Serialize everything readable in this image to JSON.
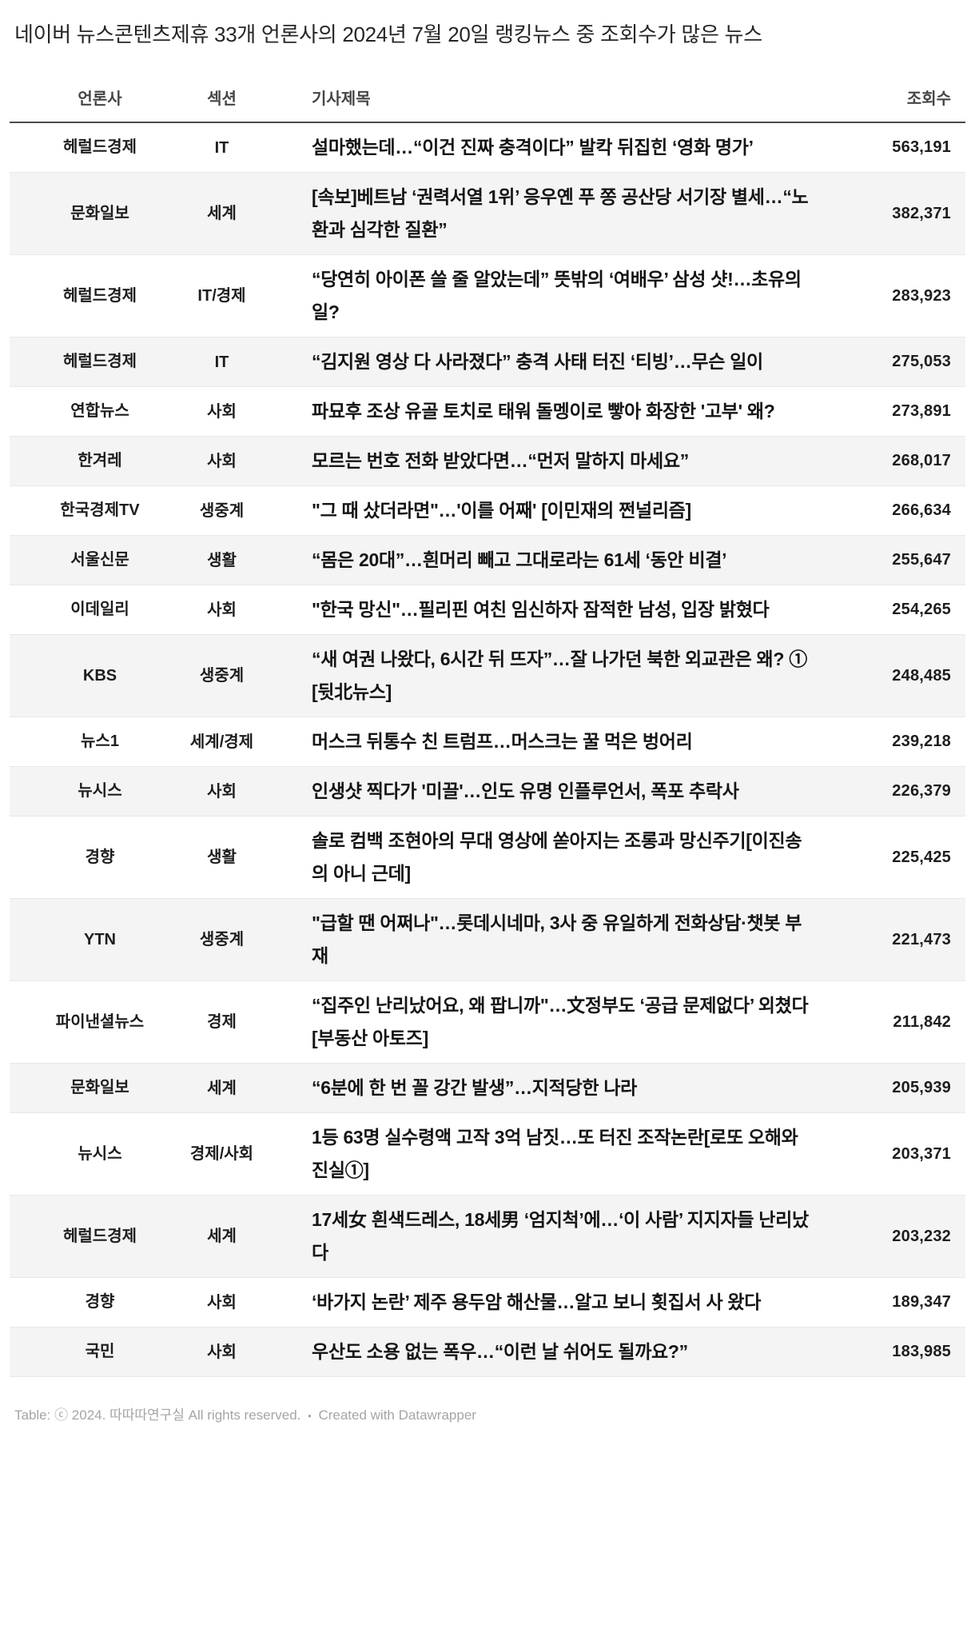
{
  "title": "네이버 뉴스콘텐츠제휴 33개 언론사의 2024년 7월 20일 랭킹뉴스 중 조회수가 많은 뉴스",
  "chart_data": {
    "type": "table",
    "title": "네이버 뉴스콘텐츠제휴 33개 언론사의 2024년 7월 20일 랭킹뉴스 중 조회수가 많은 뉴스",
    "columns": [
      "언론사",
      "섹션",
      "기사제목",
      "조회수"
    ],
    "rows": [
      [
        "헤럴드경제",
        "IT",
        "설마했는데…“이건 진짜 충격이다” 발칵 뒤집힌 ‘영화 명가’",
        "563,191"
      ],
      [
        "문화일보",
        "세계",
        "[속보]베트남 ‘권력서열 1위’ 응우옌 푸 쫑 공산당 서기장 별세…“노환과 심각한 질환”",
        "382,371"
      ],
      [
        "헤럴드경제",
        "IT/경제",
        "“당연히 아이폰 쓸 줄 알았는데” 뜻밖의 ‘여배우’ 삼성 샷!…초유의 일?",
        "283,923"
      ],
      [
        "헤럴드경제",
        "IT",
        "“김지원 영상 다 사라졌다” 충격 사태 터진 ‘티빙’…무슨 일이",
        "275,053"
      ],
      [
        "연합뉴스",
        "사회",
        "파묘후 조상 유골 토치로 태워 돌멩이로 빻아 화장한 '고부' 왜?",
        "273,891"
      ],
      [
        "한겨레",
        "사회",
        "모르는 번호 전화 받았다면…“먼저 말하지 마세요”",
        "268,017"
      ],
      [
        "한국경제TV",
        "생중계",
        "\"그 때 샀더라면\"…'이를 어째' [이민재의 쩐널리즘]",
        "266,634"
      ],
      [
        "서울신문",
        "생활",
        "“몸은 20대”…흰머리 빼고 그대로라는 61세 ‘동안 비결’",
        "255,647"
      ],
      [
        "이데일리",
        "사회",
        "\"한국 망신\"…필리핀 여친 임신하자 잠적한 남성, 입장 밝혔다",
        "254,265"
      ],
      [
        "KBS",
        "생중계",
        "“새 여권 나왔다, 6시간 뒤 뜨자”…잘 나가던 북한 외교관은 왜? ① [뒷北뉴스]",
        "248,485"
      ],
      [
        "뉴스1",
        "세계/경제",
        "머스크 뒤통수 친 트럼프…머스크는 꿀 먹은 벙어리",
        "239,218"
      ],
      [
        "뉴시스",
        "사회",
        "인생샷 찍다가 '미끌'…인도 유명 인플루언서, 폭포 추락사",
        "226,379"
      ],
      [
        "경향",
        "생활",
        "솔로 컴백 조현아의 무대 영상에 쏟아지는 조롱과 망신주기[이진송의 아니 근데]",
        "225,425"
      ],
      [
        "YTN",
        "생중계",
        "\"급할 땐 어쩌나\"…롯데시네마, 3사 중 유일하게 전화상담·챗봇 부재",
        "221,473"
      ],
      [
        "파이낸셜뉴스",
        "경제",
        "“집주인 난리났어요, 왜 팝니까\"…文정부도 ‘공급 문제없다’ 외쳤다[부동산 아토즈]",
        "211,842"
      ],
      [
        "문화일보",
        "세계",
        "“6분에 한 번 꼴 강간 발생”…지적당한 나라",
        "205,939"
      ],
      [
        "뉴시스",
        "경제/사회",
        "1등 63명 실수령액 고작 3억 남짓…또 터진 조작논란[로또 오해와 진실①]",
        "203,371"
      ],
      [
        "헤럴드경제",
        "세계",
        "17세女 흰색드레스, 18세男 ‘엄지척’에…‘이 사람’ 지지자들 난리났다",
        "203,232"
      ],
      [
        "경향",
        "사회",
        "‘바가지 논란’ 제주 용두암 해산물…알고 보니 횟집서 사 왔다",
        "189,347"
      ],
      [
        "국민",
        "사회",
        "우산도 소용 없는 폭우…“이런 날 쉬어도 될까요?”",
        "183,985"
      ]
    ],
    "views_numeric": [
      563191,
      382371,
      283923,
      275053,
      273891,
      268017,
      266634,
      255647,
      254265,
      248485,
      239218,
      226379,
      225425,
      221473,
      211842,
      205939,
      203371,
      203232,
      189347,
      183985
    ],
    "legend_position": "none",
    "grid": "row-dividers"
  },
  "table": {
    "headers": {
      "outlet": "언론사",
      "section": "섹션",
      "title": "기사제목",
      "views": "조회수"
    }
  },
  "footer": {
    "credit": "Table: ⓒ 2024. 따따따연구실 All rights reserved.",
    "separator": "•",
    "datawrapper": "Created with Datawrapper"
  },
  "colors": {
    "row_alt_bg": "#f4f4f4",
    "row_divider": "#e8e8e8",
    "header_border": "#4a4a4a",
    "text": "#1d1d1d",
    "footer_text": "#a5a5a5"
  }
}
